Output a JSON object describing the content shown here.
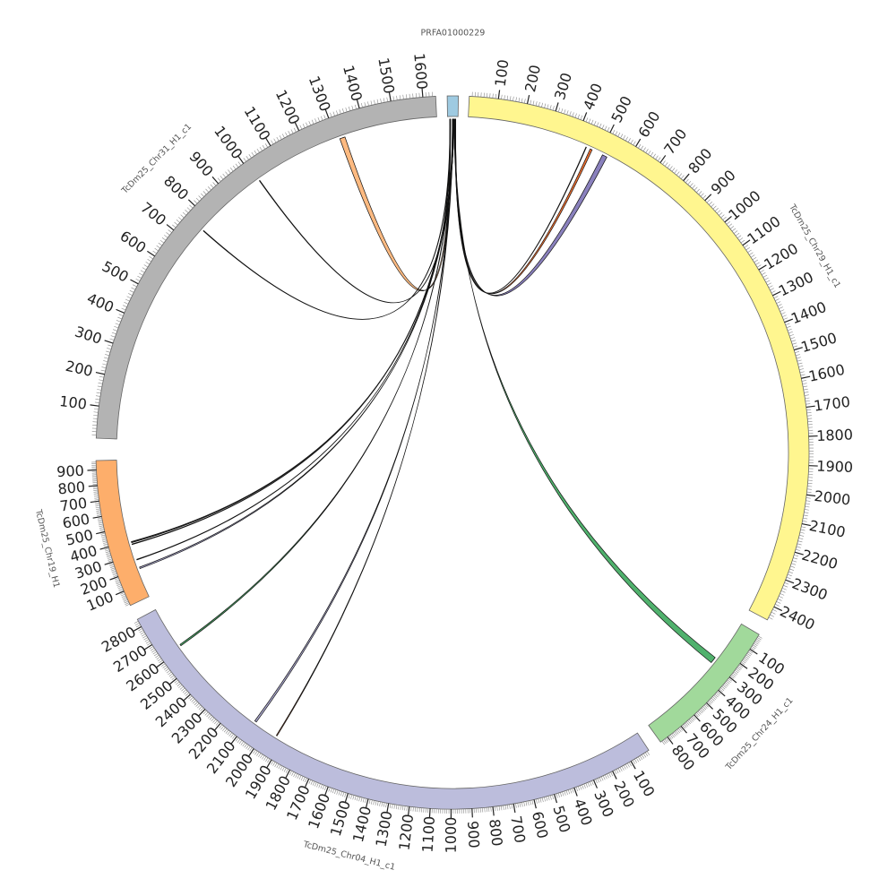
{
  "diagram": {
    "type": "circos",
    "chromosomes": [
      {
        "id": "PRFA01000229",
        "label": "PRFA01000229",
        "length": 24,
        "color": "#9ecae1"
      },
      {
        "id": "chr29",
        "label": "TcDm25_Chr29_H1_c1",
        "length": 2450,
        "color": "#fff68f",
        "ticks": [
          "100",
          "200",
          "300",
          "400",
          "500",
          "600",
          "700",
          "800",
          "900",
          "1000",
          "1100",
          "1200",
          "1300",
          "1400",
          "1500",
          "1600",
          "1700",
          "1800",
          "1900",
          "2000",
          "2100",
          "2200",
          "2300",
          "2400"
        ]
      },
      {
        "id": "chr24",
        "label": "TcDm25_Chr24_H1_c1",
        "length": 850,
        "color": "#a1d99b",
        "ticks": [
          "100",
          "200",
          "300",
          "400",
          "500",
          "600",
          "700",
          "800"
        ]
      },
      {
        "id": "chr04",
        "label": "TcDm25_Chr04_H1_c1",
        "length": 2840,
        "color": "#bcbddc",
        "ticks": [
          "100",
          "200",
          "300",
          "400",
          "500",
          "600",
          "700",
          "800",
          "900",
          "1000",
          "1100",
          "1200",
          "1300",
          "1400",
          "1500",
          "1600",
          "1700",
          "1800",
          "1900",
          "2000",
          "2100",
          "2200",
          "2300",
          "2400",
          "2500",
          "2600",
          "2700",
          "2800"
        ]
      },
      {
        "id": "chr19",
        "label": "TcDm25_Chr19_H1",
        "length": 960,
        "color": "#fdae6b",
        "ticks": [
          "100",
          "200",
          "300",
          "400",
          "500",
          "600",
          "700",
          "800",
          "900"
        ]
      },
      {
        "id": "chr31",
        "label": "TcDm25_Chr31_H1_c1",
        "length": 1640,
        "color": "#b3b3b3",
        "ticks": [
          "100",
          "200",
          "300",
          "400",
          "500",
          "600",
          "700",
          "800",
          "900",
          "1000",
          "1100",
          "1200",
          "1300",
          "1400",
          "1500",
          "1600"
        ]
      }
    ],
    "links": [
      {
        "a": 6,
        "b": 1320,
        "bw": 18,
        "target": "chr31",
        "color": "#fdae6b"
      },
      {
        "a": 6,
        "b": 1010,
        "bw": 2,
        "target": "chr31",
        "color": "#000000"
      },
      {
        "a": 6,
        "b": 760,
        "bw": 2,
        "target": "chr31",
        "color": "#000000"
      },
      {
        "a": 14,
        "b": 390,
        "bw": 8,
        "target": "chr19",
        "color": "#000000"
      },
      {
        "a": 14,
        "b": 375,
        "bw": 4,
        "target": "chr19",
        "color": "#000000"
      },
      {
        "a": 14,
        "b": 265,
        "bw": 4,
        "target": "chr19",
        "color": "#636363"
      },
      {
        "a": 14,
        "b": 205,
        "bw": 10,
        "target": "chr19",
        "color": "#9e9ac8"
      },
      {
        "a": 12,
        "b": 2620,
        "bw": 8,
        "target": "chr04",
        "color": "#31a354"
      },
      {
        "a": 12,
        "b": 2070,
        "bw": 10,
        "target": "chr04",
        "color": "#9e9ac8"
      },
      {
        "a": 12,
        "b": 1940,
        "bw": 4,
        "target": "chr04",
        "color": "#e6550d"
      },
      {
        "a": 16,
        "b": 282,
        "bw": 40,
        "target": "chr24",
        "color": "#31a354"
      },
      {
        "a": 18,
        "b": 445,
        "bw": 2,
        "target": "chr29",
        "color": "#000000"
      },
      {
        "a": 18,
        "b": 465,
        "bw": 8,
        "target": "chr29",
        "color": "#e6550d"
      },
      {
        "a": 18,
        "b": 520,
        "bw": 18,
        "target": "chr29",
        "color": "#756bb1"
      }
    ]
  }
}
